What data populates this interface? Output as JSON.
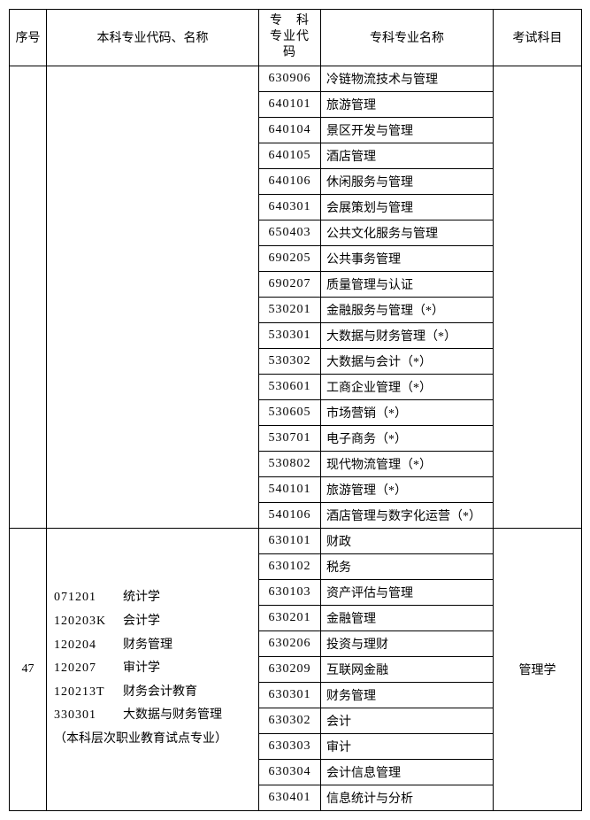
{
  "headers": {
    "seq": "序号",
    "bk": "本科专业代码、名称",
    "zkcode_l1": "专　科",
    "zkcode_l2": "专业代码",
    "zkname": "专科专业名称",
    "exam": "考试科目"
  },
  "group1": {
    "rows": [
      {
        "code": "630906",
        "name": "冷链物流技术与管理"
      },
      {
        "code": "640101",
        "name": "旅游管理"
      },
      {
        "code": "640104",
        "name": "景区开发与管理"
      },
      {
        "code": "640105",
        "name": "酒店管理"
      },
      {
        "code": "640106",
        "name": "休闲服务与管理"
      },
      {
        "code": "640301",
        "name": "会展策划与管理"
      },
      {
        "code": "650403",
        "name": "公共文化服务与管理"
      },
      {
        "code": "690205",
        "name": "公共事务管理"
      },
      {
        "code": "690207",
        "name": "质量管理与认证"
      },
      {
        "code": "530201",
        "name": "金融服务与管理（*）"
      },
      {
        "code": "530301",
        "name": "大数据与财务管理（*）"
      },
      {
        "code": "530302",
        "name": "大数据与会计（*）"
      },
      {
        "code": "530601",
        "name": "工商企业管理（*）"
      },
      {
        "code": "530605",
        "name": "市场营销（*）"
      },
      {
        "code": "530701",
        "name": "电子商务（*）"
      },
      {
        "code": "530802",
        "name": "现代物流管理（*）"
      },
      {
        "code": "540101",
        "name": "旅游管理（*）"
      },
      {
        "code": "540106",
        "name": "酒店管理与数字化运营（*）"
      }
    ]
  },
  "group2": {
    "seq": "47",
    "exam": "管理学",
    "bk_lines": [
      {
        "code": "071201",
        "name": "统计学"
      },
      {
        "code": "120203K",
        "name": "会计学"
      },
      {
        "code": "120204",
        "name": "财务管理"
      },
      {
        "code": "120207",
        "name": "审计学"
      },
      {
        "code": "120213T",
        "name": "财务会计教育"
      },
      {
        "code": "330301",
        "name": "大数据与财务管理"
      }
    ],
    "bk_note": "（本科层次职业教育试点专业）",
    "rows": [
      {
        "code": "630101",
        "name": "财政"
      },
      {
        "code": "630102",
        "name": "税务"
      },
      {
        "code": "630103",
        "name": "资产评估与管理"
      },
      {
        "code": "630201",
        "name": "金融管理"
      },
      {
        "code": "630206",
        "name": "投资与理财"
      },
      {
        "code": "630209",
        "name": "互联网金融"
      },
      {
        "code": "630301",
        "name": "财务管理"
      },
      {
        "code": "630302",
        "name": "会计"
      },
      {
        "code": "630303",
        "name": "审计"
      },
      {
        "code": "630304",
        "name": "会计信息管理"
      },
      {
        "code": "630401",
        "name": "信息统计与分析"
      }
    ]
  }
}
